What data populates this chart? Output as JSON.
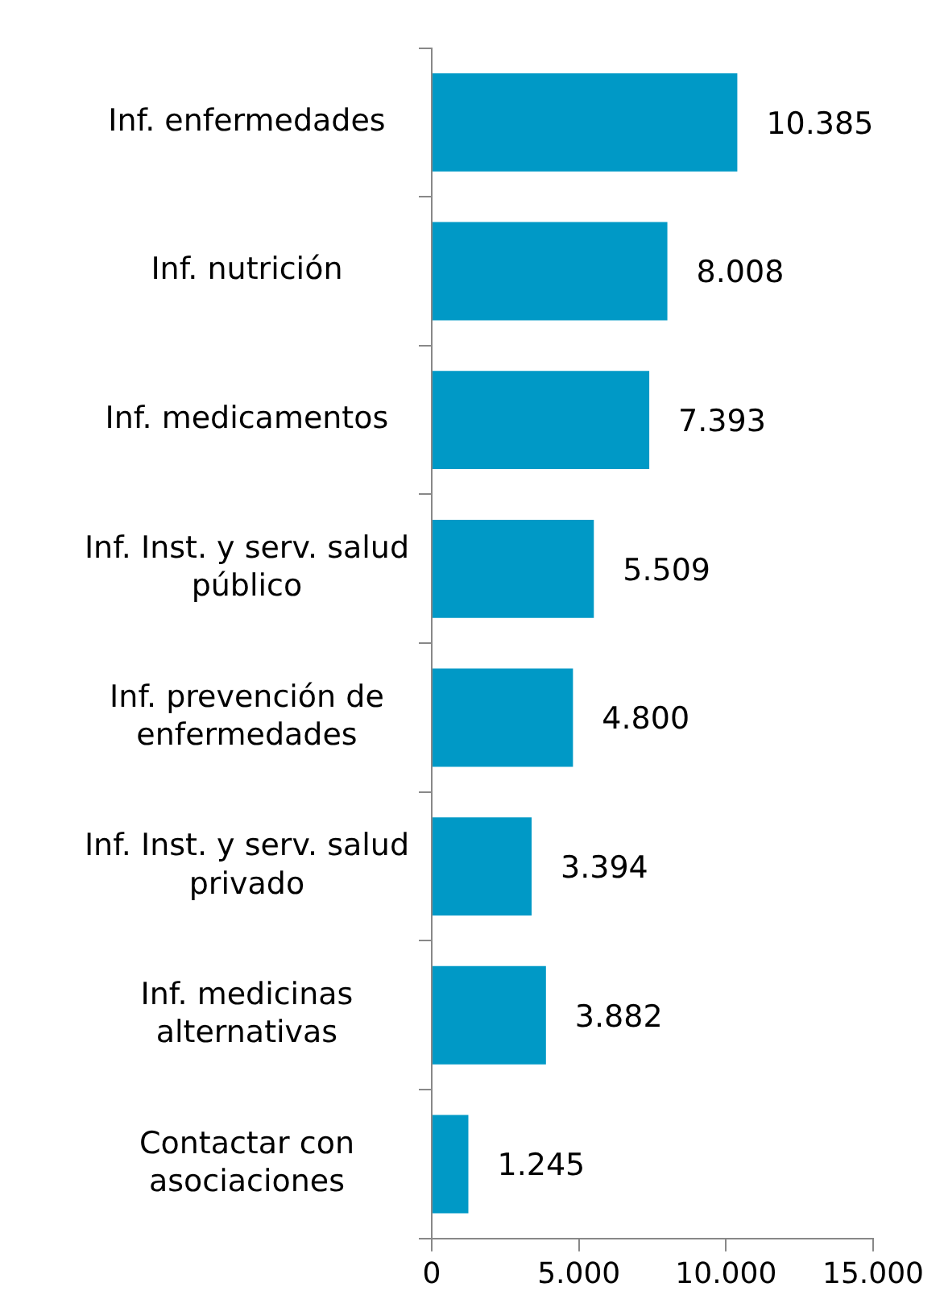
{
  "chart_data": {
    "type": "bar",
    "orientation": "horizontal",
    "categories": [
      "Inf. enfermedades",
      "Inf. nutrición",
      "Inf. medicamentos",
      "Inf. Inst. y serv. salud público",
      "Inf. prevención de enfermedades",
      "Inf. Inst. y serv. salud privado",
      "Inf. medicinas alternativas",
      "Contactar con asociaciones"
    ],
    "values": [
      10385,
      8008,
      7393,
      5509,
      4800,
      3394,
      3882,
      1245
    ],
    "color": "#0099c6",
    "value_labels": [
      "10.385",
      "8.008",
      "7.393",
      "5.509",
      "4.800",
      "3.394",
      "3.882",
      "1.245"
    ],
    "xlim": [
      0,
      15000
    ],
    "xticks": [
      0,
      {
        "value": 5000,
        "label": "5.000"
      },
      {
        "value": 10000,
        "label": "10.000"
      },
      {
        "value": 15000,
        "label": "15.000"
      }
    ]
  }
}
